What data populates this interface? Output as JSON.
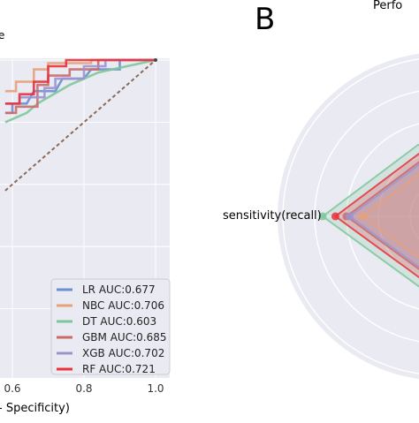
{
  "panel_b_letter": "B",
  "chart_data": [
    {
      "type": "line",
      "title": "",
      "title_fragment_visible": "e",
      "xlabel_fragment_visible": "- Specificity)",
      "ylabel": "",
      "x_ticks": [
        "0.6",
        "0.8",
        "1.0"
      ],
      "xlim": [
        0.6,
        1.0
      ],
      "ylim": [
        0.0,
        1.0
      ],
      "grid": true,
      "legend_position": "lower-right",
      "colors": {
        "LR": "#6b8fcf",
        "NBC": "#e8a07a",
        "DT": "#7fc79b",
        "GBM": "#c96b6b",
        "XGB": "#9c94d1",
        "RF": "#e8323c",
        "baseline": "#8b6a55",
        "background": "#eaeaf2"
      },
      "legend": [
        {
          "key": "LR",
          "label": "LR AUC:0.677"
        },
        {
          "key": "NBC",
          "label": "NBC AUC:0.706"
        },
        {
          "key": "DT",
          "label": "DT AUC:0.603"
        },
        {
          "key": "GBM",
          "label": "GBM AUC:0.685"
        },
        {
          "key": "XGB",
          "label": "XGB AUC:0.702"
        },
        {
          "key": "RF",
          "label": "RF AUC:0.721"
        }
      ],
      "series": [
        {
          "key": "LR",
          "name": "LR AUC:0.677",
          "points": [
            [
              0.58,
              0.83
            ],
            [
              0.6,
              0.83
            ],
            [
              0.6,
              0.86
            ],
            [
              0.64,
              0.86
            ],
            [
              0.66,
              0.9
            ],
            [
              0.72,
              0.9
            ],
            [
              0.74,
              0.94
            ],
            [
              0.8,
              0.94
            ],
            [
              0.82,
              0.97
            ],
            [
              0.9,
              0.97
            ],
            [
              0.9,
              1.0
            ],
            [
              1.0,
              1.0
            ]
          ]
        },
        {
          "key": "NBC",
          "name": "NBC AUC:0.706",
          "points": [
            [
              0.58,
              0.9
            ],
            [
              0.61,
              0.9
            ],
            [
              0.61,
              0.93
            ],
            [
              0.66,
              0.93
            ],
            [
              0.66,
              0.97
            ],
            [
              0.7,
              0.97
            ],
            [
              0.7,
              0.99
            ],
            [
              0.82,
              0.99
            ],
            [
              0.82,
              1.0
            ],
            [
              1.0,
              1.0
            ]
          ]
        },
        {
          "key": "DT",
          "name": "DT AUC:0.603",
          "points": [
            [
              0.58,
              0.8
            ],
            [
              0.6,
              0.81
            ],
            [
              0.64,
              0.83
            ],
            [
              0.67,
              0.86
            ],
            [
              0.7,
              0.88
            ],
            [
              0.76,
              0.92
            ],
            [
              0.84,
              0.96
            ],
            [
              0.92,
              0.98
            ],
            [
              1.0,
              1.0
            ]
          ]
        },
        {
          "key": "GBM",
          "name": "GBM AUC:0.685",
          "points": [
            [
              0.58,
              0.83
            ],
            [
              0.61,
              0.83
            ],
            [
              0.61,
              0.85
            ],
            [
              0.67,
              0.85
            ],
            [
              0.67,
              0.92
            ],
            [
              0.7,
              0.92
            ],
            [
              0.7,
              0.95
            ],
            [
              0.76,
              0.95
            ],
            [
              0.76,
              0.97
            ],
            [
              0.84,
              0.97
            ],
            [
              0.84,
              1.0
            ],
            [
              1.0,
              1.0
            ]
          ]
        },
        {
          "key": "XGB",
          "name": "XGB AUC:0.702",
          "points": [
            [
              0.58,
              0.86
            ],
            [
              0.62,
              0.86
            ],
            [
              0.62,
              0.88
            ],
            [
              0.69,
              0.88
            ],
            [
              0.69,
              0.91
            ],
            [
              0.72,
              0.91
            ],
            [
              0.72,
              0.94
            ],
            [
              0.8,
              0.94
            ],
            [
              0.8,
              0.98
            ],
            [
              0.86,
              0.98
            ],
            [
              0.86,
              1.0
            ],
            [
              1.0,
              1.0
            ]
          ]
        },
        {
          "key": "RF",
          "name": "RF AUC:0.721",
          "points": [
            [
              0.58,
              0.86
            ],
            [
              0.62,
              0.86
            ],
            [
              0.62,
              0.89
            ],
            [
              0.66,
              0.89
            ],
            [
              0.66,
              0.93
            ],
            [
              0.7,
              0.93
            ],
            [
              0.7,
              0.98
            ],
            [
              0.75,
              0.98
            ],
            [
              0.75,
              1.0
            ],
            [
              1.0,
              1.0
            ]
          ]
        }
      ],
      "baseline": [
        [
          0.58,
          0.58
        ],
        [
          1.0,
          1.0
        ]
      ]
    },
    {
      "type": "radar",
      "title_fragment_visible": "Perfo",
      "axis_label_visible": "sensitivity(recall)",
      "colors": {
        "LR": "#6b8fcf",
        "NBC": "#e8a07a",
        "DT": "#7fc79b",
        "GBM": "#c96b6b",
        "XGB": "#9c94d1",
        "RF": "#e8323c"
      },
      "sensitivity_values": [
        {
          "key": "DT",
          "value": 0.75
        },
        {
          "key": "RF",
          "value": 0.67
        },
        {
          "key": "GBM",
          "value": 0.6
        },
        {
          "key": "XGB",
          "value": 0.58
        },
        {
          "key": "NBC",
          "value": 0.5
        }
      ],
      "ring_levels": [
        0.2,
        0.4,
        0.6,
        0.8,
        1.0
      ]
    }
  ]
}
